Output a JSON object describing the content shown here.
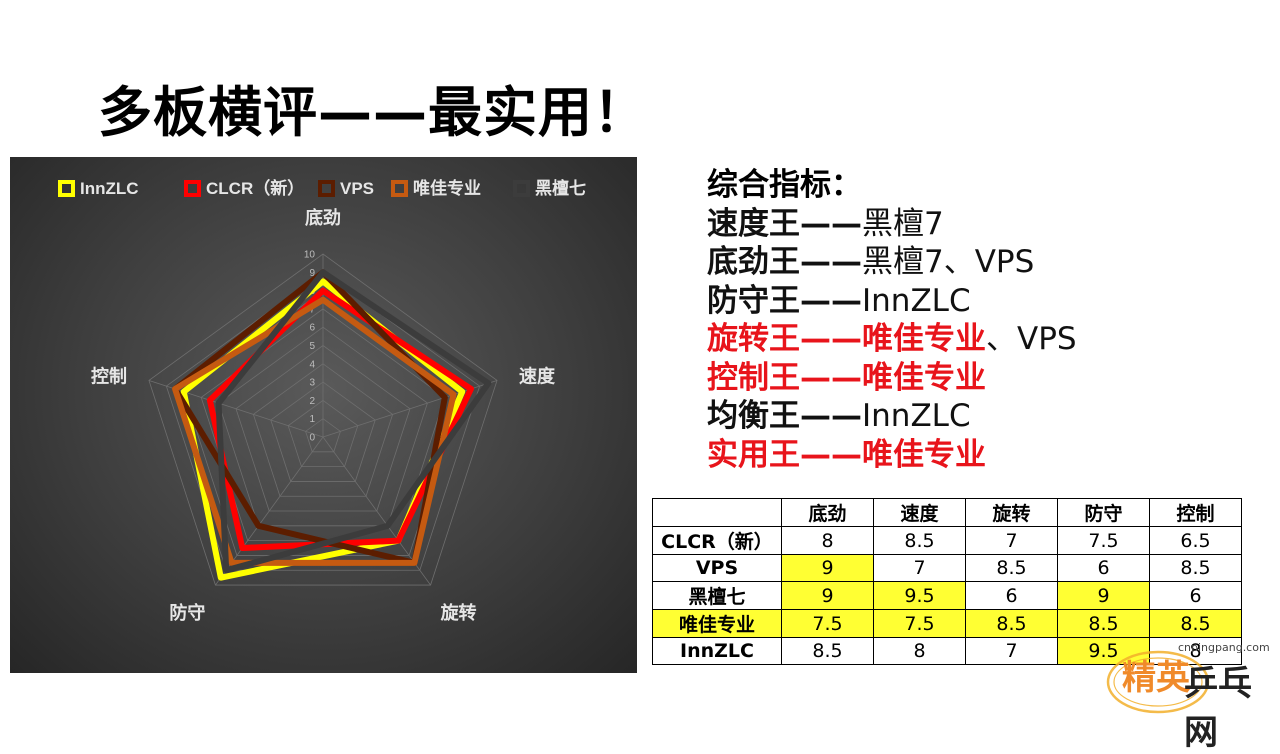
{
  "slide": {
    "title": "多板横评——最实用！"
  },
  "chart_data": {
    "type": "radar",
    "title": "",
    "axes": [
      "底劲",
      "速度",
      "旋转",
      "防守",
      "控制"
    ],
    "scale": {
      "min": 0,
      "max": 10,
      "ticks": [
        "0",
        "1",
        "2",
        "3",
        "4",
        "5",
        "6",
        "7",
        "8",
        "9",
        "10"
      ]
    },
    "legend_position": "top",
    "series": [
      {
        "name": "InnZLC",
        "color": "#ffff00",
        "values": [
          8.5,
          8,
          7,
          9.5,
          8
        ]
      },
      {
        "name": "CLCR（新）",
        "color": "#ff0000",
        "values": [
          8,
          8.5,
          7,
          7.5,
          6.5
        ]
      },
      {
        "name": "VPS",
        "color": "#5c1d00",
        "values": [
          9,
          7,
          8.5,
          6,
          8.5
        ]
      },
      {
        "name": "唯佳专业",
        "color": "#c55a11",
        "values": [
          7.5,
          7.5,
          8.5,
          8.5,
          8.5
        ]
      },
      {
        "name": "黑檀七",
        "color": "#3c3c3c",
        "values": [
          9,
          9.5,
          6,
          9,
          6
        ]
      }
    ]
  },
  "summary": {
    "heading": "综合指标：",
    "lines": [
      {
        "label": "速度王——",
        "value": "黑檀7",
        "label_red": false,
        "value_red": false,
        "value_bold": false
      },
      {
        "label": "底劲王——",
        "value": "黑檀7、VPS",
        "label_red": false,
        "value_red": false,
        "value_bold": false
      },
      {
        "label": "防守王——",
        "value": "InnZLC",
        "label_red": false,
        "value_red": false,
        "value_bold": false
      },
      {
        "label": "旋转王——",
        "value": "唯佳专业",
        "extra": "、VPS",
        "label_red": true,
        "value_red": true,
        "value_bold": true
      },
      {
        "label": "控制王——",
        "value": "唯佳专业",
        "label_red": true,
        "value_red": true,
        "value_bold": true
      },
      {
        "label": "均衡王——",
        "value": "InnZLC",
        "label_red": false,
        "value_red": false,
        "value_bold": false
      },
      {
        "label": "实用王——",
        "value": "唯佳专业",
        "label_red": true,
        "value_red": true,
        "value_bold": true
      }
    ]
  },
  "table": {
    "headers": [
      "",
      "底劲",
      "速度",
      "旋转",
      "防守",
      "控制"
    ],
    "rows": [
      {
        "name": "CLCR（新）",
        "name_hl": false,
        "cells": [
          "8",
          "8.5",
          "7",
          "7.5",
          "6.5"
        ],
        "hl": [
          false,
          false,
          false,
          false,
          false
        ]
      },
      {
        "name": "VPS",
        "name_hl": false,
        "cells": [
          "9",
          "7",
          "8.5",
          "6",
          "8.5"
        ],
        "hl": [
          true,
          false,
          false,
          false,
          false
        ]
      },
      {
        "name": "黑檀七",
        "name_hl": false,
        "cells": [
          "9",
          "9.5",
          "6",
          "9",
          "6"
        ],
        "hl": [
          true,
          true,
          false,
          true,
          false
        ]
      },
      {
        "name": "唯佳专业",
        "name_hl": true,
        "cells": [
          "7.5",
          "7.5",
          "8.5",
          "8.5",
          "8.5"
        ],
        "hl": [
          true,
          true,
          true,
          true,
          true
        ]
      },
      {
        "name": "InnZLC",
        "name_hl": false,
        "cells": [
          "8.5",
          "8",
          "7",
          "9.5",
          "8"
        ],
        "hl": [
          false,
          false,
          false,
          true,
          false
        ]
      }
    ]
  },
  "watermark": {
    "url": "cnpingpang.com",
    "logo_text_a": "精英",
    "logo_text_b": "乒乓网"
  }
}
